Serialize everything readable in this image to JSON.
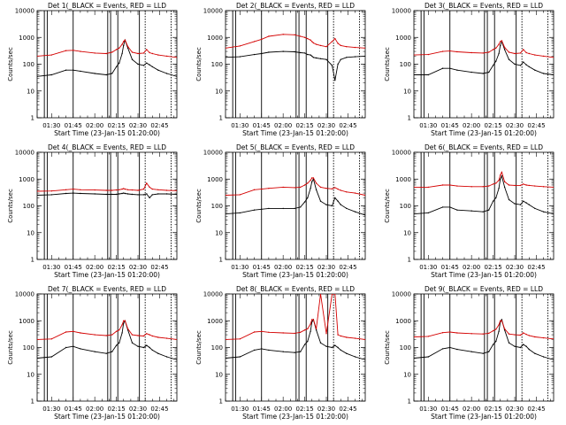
{
  "figure": {
    "background": "#ffffff",
    "colors": {
      "events": "#000000",
      "lld": "#d40000",
      "axes": "#000000"
    }
  },
  "chart_data": {
    "type": "line",
    "yscale": "log",
    "ylim": [
      1,
      10000
    ],
    "xlim": [
      "01:20:00",
      "02:57:00"
    ],
    "grid": false,
    "ylabel": "Counts/sec",
    "xlabel": "Start Time (23-Jan-15 01:20:00)",
    "y_tick_labels": [
      "1",
      "10",
      "100",
      "1000",
      "10000"
    ],
    "x_tick_labels": [
      "01:30",
      "01:45",
      "02:00",
      "02:15",
      "02:30",
      "02:45"
    ],
    "x_ticks_hhmm": [
      "01:30",
      "01:45",
      "02:00",
      "02:15",
      "02:30",
      "02:45"
    ],
    "solid_markers_hhmm": [
      "01:25",
      "01:27",
      "01:45",
      "02:09",
      "02:11",
      "02:16",
      "02:31"
    ],
    "dotted_markers_hhmm": [
      "02:35",
      "02:53"
    ],
    "sample_times_hhmm": [
      "01:20",
      "01:30",
      "01:40",
      "01:45",
      "01:50",
      "02:00",
      "02:08",
      "02:12",
      "02:15",
      "02:17",
      "02:19",
      "02:20",
      "02:21",
      "02:23",
      "02:26",
      "02:30",
      "02:34",
      "02:36",
      "02:38",
      "02:40",
      "02:44",
      "02:50",
      "02:57"
    ],
    "panels": [
      {
        "title": "Det 1(_BLACK = Events, RED = LLD",
        "series": [
          {
            "name": "Events",
            "values": [
              35,
              40,
              60,
              60,
              55,
              45,
              40,
              45,
              80,
              110,
              250,
              500,
              800,
              400,
              150,
              100,
              90,
              110,
              95,
              80,
              60,
              45,
              35
            ]
          },
          {
            "name": "LLD",
            "values": [
              200,
              220,
              320,
              330,
              300,
              260,
              250,
              280,
              350,
              400,
              550,
              700,
              800,
              450,
              280,
              250,
              260,
              350,
              270,
              250,
              220,
              200,
              180
            ]
          }
        ]
      },
      {
        "title": "Det 2(_BLACK = Events, RED = LLD",
        "series": [
          {
            "name": "Events",
            "values": [
              180,
              190,
              230,
              250,
              280,
              300,
              290,
              270,
              260,
              230,
              220,
              200,
              180,
              170,
              160,
              150,
              90,
              25,
              100,
              150,
              180,
              190,
              200
            ]
          },
          {
            "name": "LLD",
            "values": [
              400,
              480,
              700,
              850,
              1100,
              1300,
              1250,
              1100,
              1000,
              900,
              800,
              700,
              620,
              550,
              500,
              450,
              700,
              900,
              600,
              500,
              450,
              420,
              400
            ]
          }
        ]
      },
      {
        "title": "Det 3(_BLACK = Events, RED = LLD",
        "series": [
          {
            "name": "Events",
            "values": [
              40,
              40,
              70,
              70,
              60,
              50,
              45,
              50,
              90,
              130,
              250,
              500,
              700,
              350,
              150,
              100,
              90,
              120,
              95,
              80,
              60,
              45,
              40
            ]
          },
          {
            "name": "LLD",
            "values": [
              220,
              230,
              300,
              310,
              290,
              270,
              260,
              280,
              350,
              400,
              550,
              700,
              750,
              420,
              280,
              250,
              260,
              350,
              270,
              250,
              220,
              200,
              180
            ]
          }
        ]
      },
      {
        "title": "Det 4(_BLACK = Events, RED = LLD",
        "series": [
          {
            "name": "Events",
            "values": [
              250,
              260,
              290,
              300,
              290,
              280,
              270,
              270,
              270,
              280,
              290,
              300,
              290,
              280,
              270,
              260,
              260,
              280,
              200,
              260,
              280,
              280,
              270
            ]
          },
          {
            "name": "LLD",
            "values": [
              350,
              360,
              400,
              420,
              400,
              390,
              380,
              380,
              390,
              400,
              420,
              440,
              420,
              400,
              390,
              380,
              420,
              700,
              500,
              420,
              400,
              380,
              370
            ]
          }
        ]
      },
      {
        "title": "Det 5(_BLACK = Events, RED = LLD",
        "series": [
          {
            "name": "Events",
            "values": [
              50,
              55,
              70,
              75,
              80,
              80,
              80,
              90,
              140,
              200,
              450,
              800,
              1000,
              400,
              150,
              110,
              100,
              200,
              150,
              110,
              80,
              60,
              45
            ]
          },
          {
            "name": "LLD",
            "values": [
              250,
              260,
              400,
              420,
              450,
              500,
              480,
              500,
              600,
              700,
              900,
              1100,
              1100,
              700,
              500,
              450,
              430,
              480,
              420,
              380,
              330,
              300,
              250
            ]
          }
        ]
      },
      {
        "title": "Det 6(_BLACK = Events, RED = LLD",
        "series": [
          {
            "name": "Events",
            "values": [
              50,
              55,
              90,
              90,
              70,
              65,
              60,
              70,
              150,
              200,
              450,
              1000,
              1300,
              500,
              170,
              120,
              110,
              150,
              130,
              110,
              80,
              60,
              50
            ]
          },
          {
            "name": "LLD",
            "values": [
              500,
              500,
              600,
              600,
              550,
              520,
              520,
              550,
              650,
              700,
              900,
              1400,
              1800,
              800,
              600,
              580,
              580,
              650,
              600,
              580,
              550,
              520,
              500
            ]
          }
        ]
      },
      {
        "title": "Det 7(_BLACK = Events, RED = LLD",
        "series": [
          {
            "name": "Events",
            "values": [
              40,
              45,
              100,
              110,
              90,
              70,
              60,
              70,
              120,
              150,
              350,
              800,
              1000,
              450,
              150,
              110,
              100,
              120,
              100,
              80,
              60,
              45,
              35
            ]
          },
          {
            "name": "LLD",
            "values": [
              200,
              210,
              380,
              400,
              350,
              300,
              280,
              300,
              400,
              450,
              700,
              1000,
              1000,
              500,
              300,
              280,
              270,
              330,
              300,
              270,
              240,
              220,
              200
            ]
          }
        ]
      },
      {
        "title": "Det 8(_BLACK = Events, RED = LLD",
        "series": [
          {
            "name": "Events",
            "values": [
              40,
              45,
              80,
              90,
              80,
              70,
              65,
              70,
              130,
              170,
              400,
              900,
              1100,
              450,
              150,
              110,
              100,
              120,
              100,
              80,
              60,
              45,
              35
            ]
          },
          {
            "name": "LLD",
            "values": [
              200,
              210,
              380,
              400,
              370,
              350,
              340,
              370,
              450,
              500,
              750,
              1100,
              1100,
              500,
              10000,
              330,
              10000,
              10000,
              300,
              270,
              240,
              220,
              200
            ]
          }
        ]
      },
      {
        "title": "Det 9(_BLACK = Events, RED = LLD",
        "series": [
          {
            "name": "Events",
            "values": [
              40,
              45,
              90,
              100,
              85,
              70,
              60,
              70,
              130,
              170,
              400,
              900,
              1100,
              450,
              150,
              110,
              100,
              130,
              110,
              85,
              60,
              45,
              35
            ]
          },
          {
            "name": "LLD",
            "values": [
              250,
              260,
              360,
              380,
              350,
              330,
              320,
              340,
              420,
              480,
              700,
              1000,
              1000,
              500,
              320,
              300,
              290,
              350,
              310,
              280,
              250,
              230,
              210
            ]
          }
        ]
      }
    ]
  }
}
